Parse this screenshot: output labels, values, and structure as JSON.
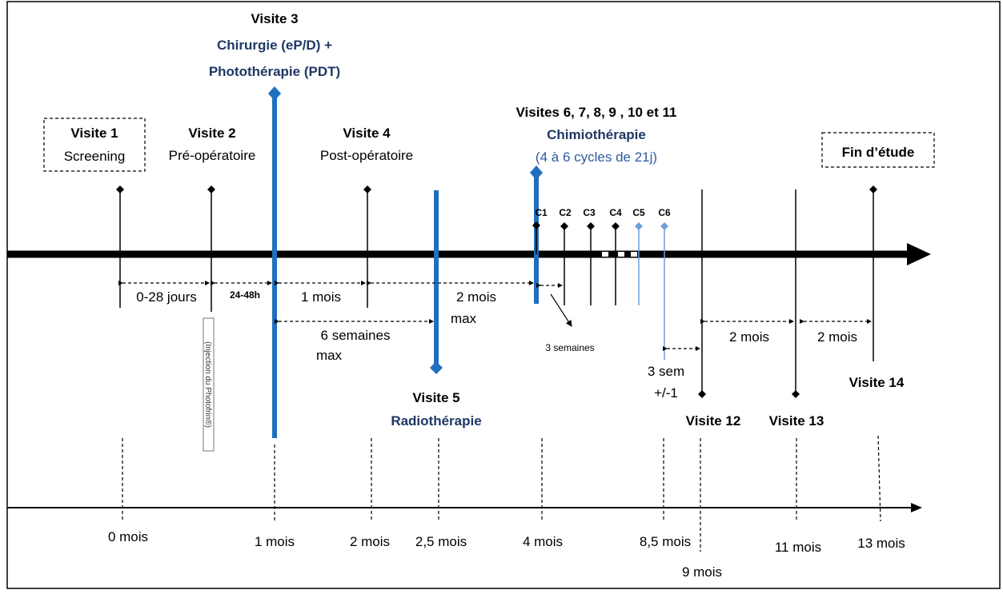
{
  "visits": {
    "v1": {
      "title": "Visite 1",
      "subtitle": "Screening"
    },
    "v2": {
      "title": "Visite 2",
      "subtitle": "Pré-opératoire"
    },
    "v3": {
      "title": "Visite 3",
      "line1": "Chirurgie (eP/D) +",
      "line2": "Photothérapie (PDT)"
    },
    "v4": {
      "title": "Visite 4",
      "subtitle": "Post-opératoire"
    },
    "v5": {
      "title": "Visite 5",
      "subtitle": "Radiothérapie"
    },
    "v6to11": {
      "title": "Visites 6, 7, 8, 9 , 10 et 11",
      "subtitle": "Chimiothérapie",
      "detail": "(4 à 6 cycles de 21j)"
    },
    "v12": {
      "title": "Visite 12"
    },
    "v13": {
      "title": "Visite 13"
    },
    "v14": {
      "title": "Visite 14"
    },
    "end": {
      "title": "Fin d’étude"
    }
  },
  "cycles": [
    "C1",
    "C2",
    "C3",
    "C4",
    "C5",
    "C6"
  ],
  "intervals": {
    "i1": "0-28 jours",
    "i2": "24-48h",
    "i3": "1 mois",
    "i4a": "2 mois",
    "i4b": "max",
    "i5a": "6 semaines",
    "i5b": "max",
    "i6": "3 semaines",
    "i7a": "3 sem",
    "i7b": "+/-1",
    "i8": "2 mois",
    "i9": "2 mois"
  },
  "injection_note": "(Injection du Photofrin®)",
  "months": [
    "0 mois",
    "1 mois",
    "2 mois",
    "2,5 mois",
    "4 mois",
    "8,5 mois",
    "9 mois",
    "11 mois",
    "13 mois"
  ],
  "colors": {
    "blue_bar": "#1f6fc0",
    "light_blue": "#6f9fdc",
    "navy_text": "#1f3864"
  }
}
